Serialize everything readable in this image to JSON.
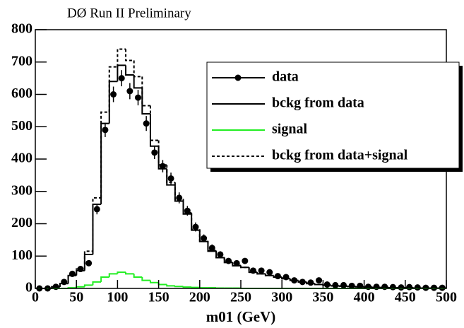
{
  "chart_data": {
    "type": "histogram",
    "title": "DØ Run II Preliminary",
    "x_label": "m01  (GeV)",
    "bins": [
      0,
      10,
      20,
      30,
      40,
      50,
      60,
      70,
      80,
      90,
      100,
      110,
      120,
      130,
      140,
      150,
      160,
      170,
      180,
      190,
      200,
      210,
      220,
      230,
      240,
      250,
      260,
      270,
      280,
      290,
      300,
      310,
      320,
      330,
      340,
      350,
      360,
      370,
      380,
      390,
      400,
      410,
      420,
      430,
      440,
      450,
      460,
      470,
      480,
      490,
      500
    ],
    "series": [
      {
        "name": "data",
        "color": "#000000",
        "style": "points",
        "values": [
          0,
          0,
          5,
          20,
          45,
          60,
          78,
          245,
          490,
          600,
          650,
          610,
          590,
          510,
          420,
          378,
          340,
          280,
          240,
          190,
          155,
          125,
          105,
          85,
          78,
          85,
          55,
          55,
          50,
          38,
          35,
          25,
          20,
          18,
          25,
          12,
          10,
          10,
          8,
          8,
          5,
          5,
          5,
          4,
          3,
          4,
          3,
          2,
          2,
          2
        ],
        "errors": [
          0,
          0,
          2,
          4,
          7,
          8,
          9,
          16,
          22,
          24,
          25,
          25,
          24,
          23,
          20,
          19,
          18,
          17,
          15,
          14,
          12,
          11,
          10,
          9,
          9,
          9,
          7,
          7,
          7,
          6,
          6,
          5,
          4,
          4,
          5,
          3,
          3,
          3,
          3,
          3,
          2,
          2,
          2,
          2,
          2,
          2,
          2,
          1,
          1,
          1
        ]
      },
      {
        "name": "bckg from data",
        "color": "#000000",
        "style": "solid",
        "values": [
          0,
          0,
          5,
          15,
          40,
          55,
          105,
          260,
          510,
          640,
          690,
          660,
          620,
          540,
          440,
          370,
          320,
          270,
          230,
          180,
          145,
          115,
          95,
          80,
          70,
          65,
          50,
          45,
          40,
          35,
          30,
          25,
          20,
          15,
          12,
          10,
          8,
          7,
          6,
          5,
          4,
          3,
          3,
          2,
          2,
          2,
          1,
          1,
          1,
          1
        ]
      },
      {
        "name": "signal",
        "color": "#22ee22",
        "style": "solid",
        "values": [
          0,
          0,
          0,
          0,
          2,
          5,
          10,
          20,
          35,
          45,
          50,
          45,
          35,
          25,
          18,
          12,
          8,
          6,
          4,
          3,
          2,
          2,
          1,
          1,
          1,
          0,
          0,
          0,
          0,
          0,
          0,
          0,
          0,
          0,
          0,
          0,
          0,
          0,
          0,
          0,
          0,
          0,
          0,
          0,
          0,
          0,
          0,
          0,
          0,
          0
        ]
      },
      {
        "name": "bckg from data+signal",
        "color": "#000000",
        "style": "dashed",
        "values": [
          0,
          0,
          5,
          15,
          42,
          60,
          115,
          280,
          545,
          685,
          740,
          705,
          655,
          565,
          458,
          382,
          328,
          276,
          234,
          183,
          147,
          117,
          96,
          81,
          71,
          65,
          50,
          45,
          40,
          35,
          30,
          25,
          20,
          15,
          12,
          10,
          8,
          7,
          6,
          5,
          4,
          3,
          3,
          2,
          2,
          2,
          1,
          1,
          1,
          1
        ]
      }
    ],
    "xlim": [
      0,
      500
    ],
    "xticks": [
      0,
      50,
      100,
      150,
      200,
      250,
      300,
      350,
      400,
      450,
      500
    ],
    "ylim": [
      0,
      800
    ],
    "yticks": [
      0,
      100,
      200,
      300,
      400,
      500,
      600,
      700,
      800
    ],
    "legend": "upper right"
  }
}
